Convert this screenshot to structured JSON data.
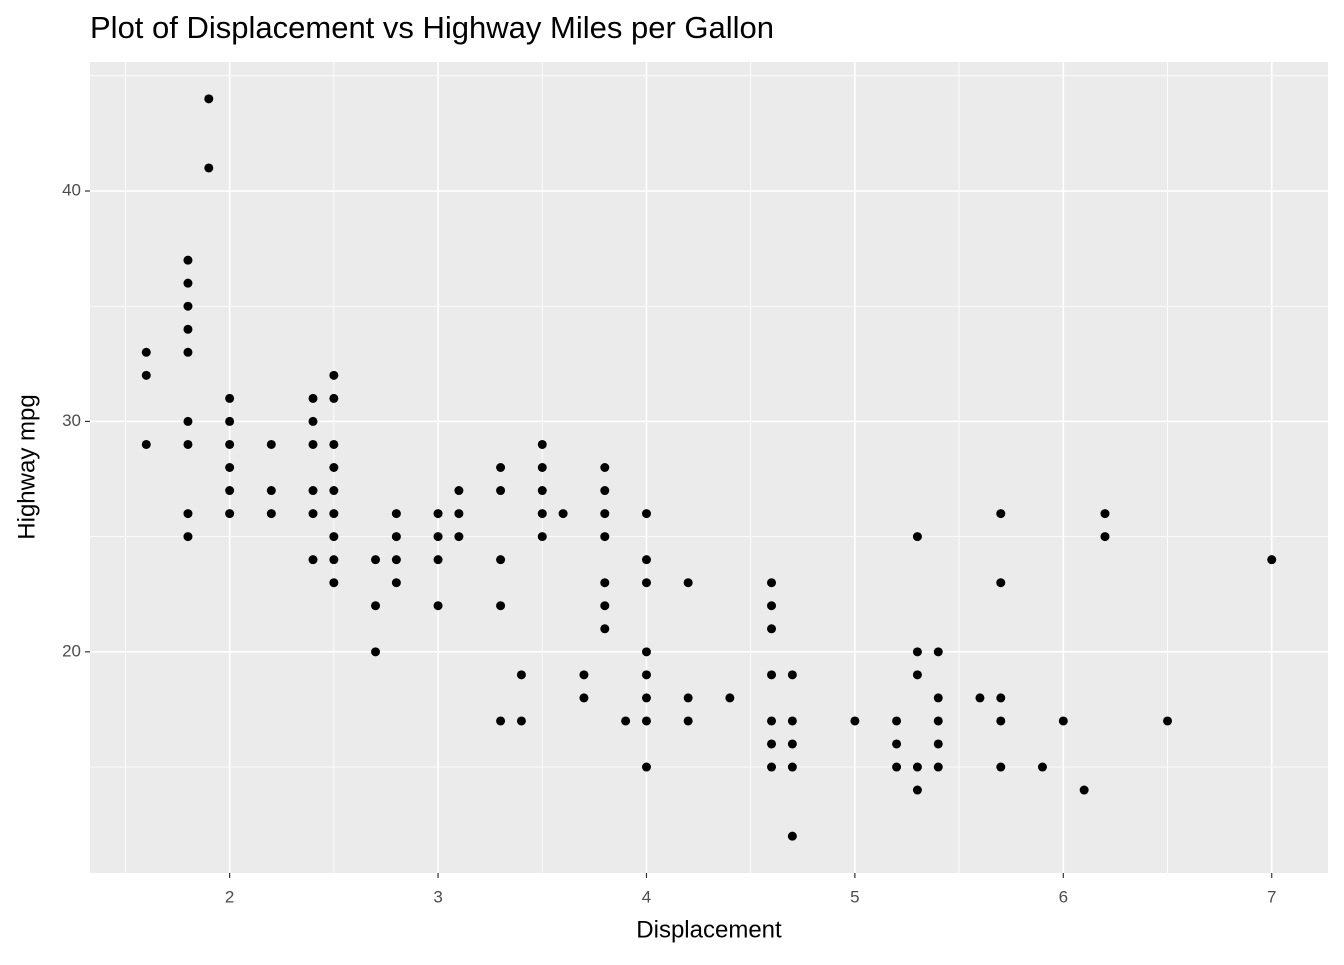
{
  "chart_data": {
    "type": "scatter",
    "title": "Plot of Displacement vs Highway Miles per Gallon",
    "x_label": "Displacement",
    "y_label": "Highway mpg",
    "color": "#000000",
    "x": [
      1.6,
      1.6,
      1.6,
      1.8,
      1.8,
      1.8,
      1.8,
      1.8,
      1.8,
      1.8,
      1.8,
      1.8,
      1.9,
      1.9,
      2,
      2,
      2,
      2,
      2,
      2,
      2.2,
      2.2,
      2.2,
      2.4,
      2.4,
      2.4,
      2.4,
      2.4,
      2.4,
      2.5,
      2.5,
      2.5,
      2.5,
      2.5,
      2.5,
      2.5,
      2.5,
      2.5,
      2.7,
      2.7,
      2.7,
      2.8,
      2.8,
      2.8,
      2.8,
      3,
      3,
      3,
      3,
      3.1,
      3.1,
      3.1,
      3.3,
      3.3,
      3.3,
      3.3,
      3.3,
      3.4,
      3.4,
      3.5,
      3.5,
      3.5,
      3.5,
      3.5,
      3.6,
      3.7,
      3.7,
      3.8,
      3.8,
      3.8,
      3.8,
      3.8,
      3.8,
      3.8,
      3.9,
      4,
      4,
      4,
      4,
      4,
      4,
      4,
      4,
      4.2,
      4.2,
      4.2,
      4.4,
      4.6,
      4.6,
      4.6,
      4.6,
      4.6,
      4.6,
      4.6,
      4.7,
      4.7,
      4.7,
      4.7,
      4.7,
      5,
      5.2,
      5.2,
      5.2,
      5.3,
      5.3,
      5.3,
      5.3,
      5.3,
      5.4,
      5.4,
      5.4,
      5.4,
      5.4,
      5.6,
      5.7,
      5.7,
      5.7,
      5.7,
      5.7,
      5.9,
      6,
      6.1,
      6.2,
      6.2,
      6.5,
      7
    ],
    "y": [
      33,
      32,
      29,
      37,
      36,
      35,
      34,
      33,
      30,
      29,
      26,
      25,
      44,
      41,
      31,
      30,
      29,
      28,
      27,
      26,
      29,
      27,
      26,
      31,
      30,
      29,
      27,
      26,
      24,
      32,
      31,
      29,
      28,
      27,
      26,
      25,
      24,
      23,
      24,
      22,
      20,
      26,
      25,
      24,
      23,
      26,
      25,
      24,
      22,
      27,
      26,
      25,
      28,
      27,
      24,
      22,
      17,
      19,
      17,
      29,
      28,
      27,
      26,
      25,
      26,
      19,
      18,
      28,
      27,
      26,
      25,
      23,
      22,
      21,
      17,
      26,
      24,
      23,
      20,
      19,
      18,
      17,
      15,
      23,
      18,
      17,
      18,
      23,
      22,
      21,
      19,
      17,
      16,
      15,
      19,
      17,
      16,
      15,
      12,
      17,
      17,
      16,
      15,
      25,
      20,
      19,
      15,
      14,
      20,
      18,
      17,
      16,
      15,
      18,
      26,
      23,
      18,
      17,
      15,
      15,
      17,
      14,
      26,
      25,
      17,
      24
    ],
    "xlim": [
      1.33,
      7.27
    ],
    "ylim": [
      10.4,
      45.6
    ],
    "xticks": [
      2,
      3,
      4,
      5,
      6,
      7
    ],
    "yticks": [
      20,
      30,
      40
    ],
    "x_minor_grid": [
      1.5,
      2.5,
      3.5,
      4.5,
      5.5,
      6.5
    ],
    "y_minor_grid": [
      15,
      25,
      35,
      45
    ],
    "grid": true
  }
}
